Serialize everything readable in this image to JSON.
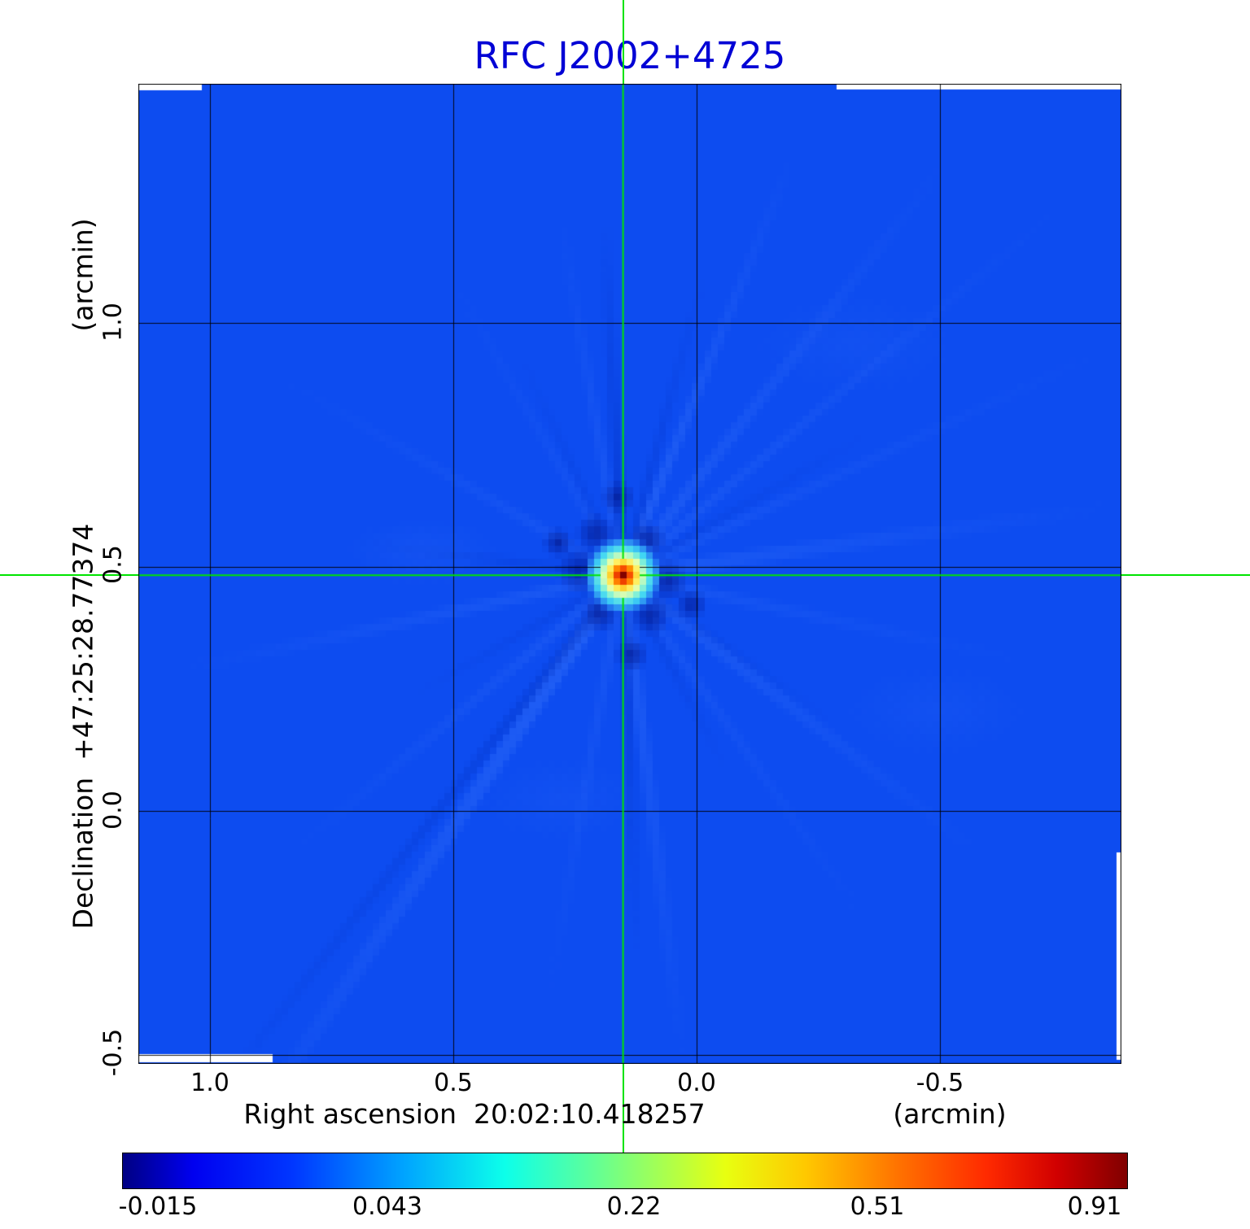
{
  "title": "RFC J2002+4725",
  "axes": {
    "x": {
      "title": "Right ascension  20:02:10.418257",
      "unit": "(arcmin)",
      "ticks": [
        "1.0",
        "0.5",
        "0.0",
        "-0.5"
      ]
    },
    "y": {
      "title": "Declination  +47:25:28.77374",
      "unit": "(arcmin)",
      "ticks": [
        "1.0",
        "0.5",
        "0.0",
        "-0.5"
      ]
    }
  },
  "colorbar": {
    "ticks": [
      "-0.015",
      "0.043",
      "0.22",
      "0.51",
      "0.91"
    ],
    "colormap": "jet",
    "gradient": [
      "#000083 0%",
      "#0000f0 7%",
      "#0037ff 17%",
      "#00a4ff 28%",
      "#0cffea 38%",
      "#58ffa0 46%",
      "#a0ff58 53%",
      "#e8ff10 60%",
      "#ffc800 68%",
      "#ff7400 77%",
      "#ff2a00 86%",
      "#d10000 93%",
      "#800000 100%"
    ]
  },
  "chart_data": {
    "type": "heatmap",
    "title": "RFC J2002+4725",
    "xlabel": "Right ascension 20:02:10.418257 (arcmin)",
    "ylabel": "Declination +47:25:28.77374 (arcmin)",
    "xlim": [
      1.147,
      -0.873
    ],
    "ylim": [
      -0.518,
      1.49
    ],
    "xticks": [
      1.0,
      0.5,
      0.0,
      -0.5
    ],
    "yticks": [
      1.0,
      0.5,
      0.0,
      -0.5
    ],
    "grid": true,
    "colorbar_ticks": [
      -0.015,
      0.043,
      0.22,
      0.51,
      0.91
    ],
    "source": {
      "ra_offset_arcmin": 0.151,
      "dec_offset_arcmin": 0.483,
      "marked_by": "green-crosshair"
    },
    "colors": {
      "background": "#0d4cf0",
      "crosshair": "#00e400",
      "title": "#0000d5",
      "grid": "#000000"
    }
  }
}
